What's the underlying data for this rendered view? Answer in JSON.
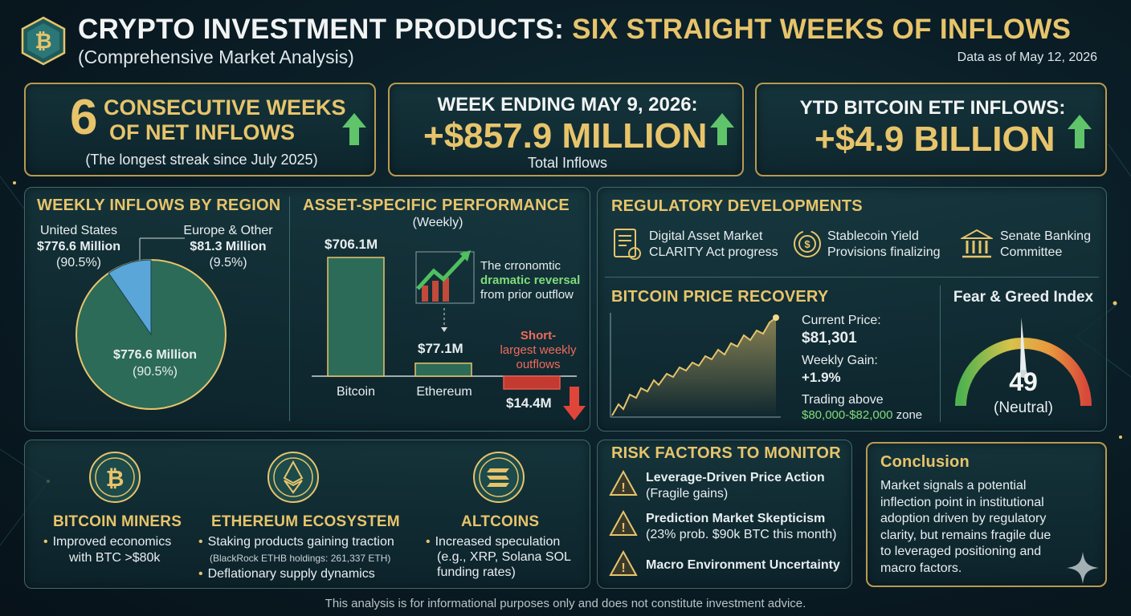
{
  "header": {
    "title_main": "CRYPTO INVESTMENT PRODUCTS:",
    "title_accent": "SIX STRAIGHT WEEKS OF INFLOWS",
    "subtitle": "(Comprehensive Market Analysis)",
    "as_of": "Data as of May 12, 2026"
  },
  "stats": {
    "streak": {
      "number": "6",
      "line1": "CONSECUTIVE WEEKS",
      "line2": "OF NET INFLOWS",
      "note": "(The longest streak since July 2025)"
    },
    "week": {
      "label": "WEEK ENDING MAY 9, 2026:",
      "value": "+$857.9 MILLION",
      "note": "Total Inflows"
    },
    "ytd": {
      "label": "YTD BITCOIN ETF INFLOWS:",
      "value": "+$4.9 BILLION"
    }
  },
  "region": {
    "title": "WEEKLY INFLOWS BY REGION",
    "us_label": "United States",
    "us_value": "$776.6 Million",
    "us_pct": "(90.5%)",
    "eu_label": "Europe & Other",
    "eu_value": "$81.3 Million",
    "eu_pct": "(9.5%)",
    "inner_value": "$776.6 Million",
    "inner_pct": "(90.5%)"
  },
  "assets": {
    "title": "ASSET-SPECIFIC PERFORMANCE",
    "subtitle": "(Weekly)",
    "btc_value": "$706.1M",
    "btc_label": "Bitcoin",
    "eth_value": "$77.1M",
    "eth_label": "Ethereum",
    "other_value": "$14.4M",
    "note_line1": "The crronomtic",
    "note_line2": "dramatic reversal",
    "note_line3": "from prior outflow",
    "short_line1": "Short-",
    "short_line2": "largest weekly",
    "short_line3": "outflows"
  },
  "chart_data": {
    "type": "bar",
    "categories": [
      "Bitcoin",
      "Ethereum",
      ""
    ],
    "values": [
      706.1,
      77.1,
      -14.4
    ]
  },
  "regulatory": {
    "title": "REGULATORY DEVELOPMENTS",
    "items": [
      {
        "line1": "Digital Asset Market",
        "line2": "CLARITY Act progress",
        "icon": "document-icon"
      },
      {
        "line1": "Stablecoin Yield",
        "line2": "Provisions finalizing",
        "icon": "coin-cycle-icon"
      },
      {
        "line1": "Senate Banking",
        "line2": "Committee",
        "icon": "bank-icon"
      }
    ]
  },
  "btc_price": {
    "title": "BITCOIN PRICE RECOVERY",
    "current_label": "Current Price:",
    "current_value": "$81,301",
    "gain_label": "Weekly Gain:",
    "gain_value": "+1.9%",
    "trading_label": "Trading above",
    "trading_value": "$80,000-$82,000",
    "trading_suffix": "zone"
  },
  "fear_greed": {
    "title": "Fear & Greed Index",
    "value": "49",
    "level": 49,
    "label": "(Neutral)"
  },
  "sectors": [
    {
      "title": "BITCOIN MINERS",
      "icon": "bitcoin-coin-icon",
      "bullets": [
        "Improved economics",
        "with BTC >$80k"
      ]
    },
    {
      "title": "ETHEREUM ECOSYSTEM",
      "icon": "ethereum-coin-icon",
      "bullet1": "Staking products gaining traction",
      "sub": "(BlackRock ETHB holdings: 261,337 ETH)",
      "bullet2": "Deflationary supply dynamics"
    },
    {
      "title": "ALTCOINS",
      "icon": "solana-coin-icon",
      "bullet1": "Increased speculation",
      "line2": "(e.g., XRP, Solana SOL",
      "line3": "funding rates)"
    }
  ],
  "risks": {
    "title": "RISK FACTORS TO MONITOR",
    "items": [
      {
        "title": "Leverage-Driven Price Action",
        "sub": "(Fragile gains)"
      },
      {
        "title": "Prediction Market Skepticism",
        "sub": "(23% prob. $90k BTC this month)"
      },
      {
        "title": "Macro Environment Uncertainty",
        "sub": ""
      }
    ]
  },
  "conclusion": {
    "title": "Conclusion",
    "lines": [
      "Market signals a potential",
      "inflection point in institutional",
      "adoption driven by regulatory",
      "clarity, but remains fragile due",
      "to leveraged positioning and",
      "macro factors."
    ]
  },
  "footer": "This analysis is for informational purposes only and does not constitute investment advice.",
  "colors": {
    "gold": "#e7c46b",
    "green": "#7fdc7a",
    "red": "#f06a5c",
    "teal": "#2a7a6a",
    "blue": "#5aa6d8"
  }
}
